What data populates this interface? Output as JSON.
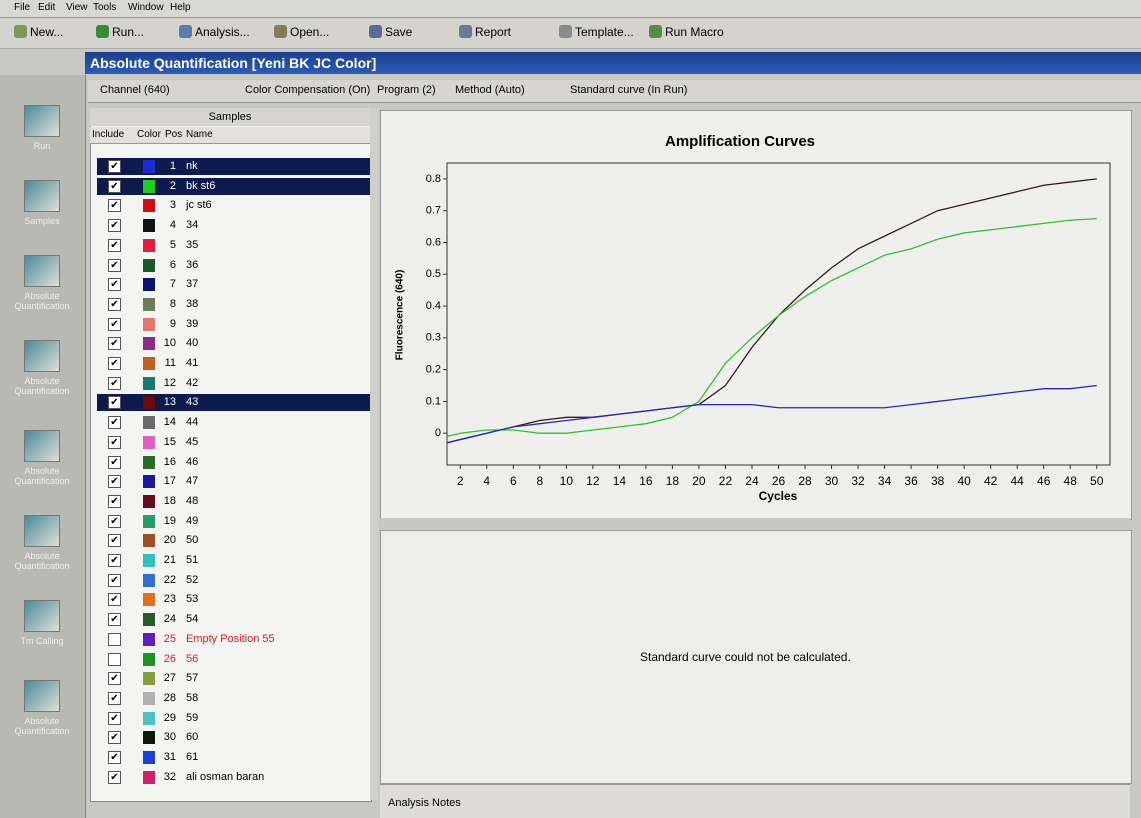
{
  "menu": [
    "File",
    "Edit",
    "View",
    "Tools",
    "Window",
    "Help"
  ],
  "toolbar": [
    "New...",
    "Run...",
    "Analysis...",
    "Open...",
    "Save",
    "Report",
    "Template...",
    "Run Macro"
  ],
  "window_title": "Absolute Quantification [Yeni BK JC Color]",
  "sidebar": [
    "Run",
    "Samples",
    "Absolute Quantification",
    "Absolute Quantification",
    "Absolute Quantification",
    "Absolute Quantification",
    "Tm Calling",
    "Absolute Quantification"
  ],
  "options": [
    "Channel (640)",
    "Color Compensation (On)",
    "Program (2)",
    "Method (Auto)",
    "Standard curve (In Run)"
  ],
  "samples_panel": {
    "title": "Samples",
    "columns": [
      "Include",
      "Color",
      "Pos",
      "Name"
    ],
    "rows": [
      {
        "include": true,
        "color": "#1a2bd0",
        "pos": 1,
        "name": "nk",
        "selected": true,
        "text_color": "#000000"
      },
      {
        "include": true,
        "color": "#22cc22",
        "pos": 2,
        "name": "bk st6",
        "selected": true,
        "text_color": "#000000"
      },
      {
        "include": true,
        "color": "#d01010",
        "pos": 3,
        "name": "jc st6",
        "selected": false,
        "text_color": "#000000"
      },
      {
        "include": true,
        "color": "#111111",
        "pos": 4,
        "name": "34",
        "selected": false,
        "text_color": "#000000"
      },
      {
        "include": true,
        "color": "#e0203a",
        "pos": 5,
        "name": "35",
        "selected": false,
        "text_color": "#000000"
      },
      {
        "include": true,
        "color": "#1a5a2a",
        "pos": 6,
        "name": "36",
        "selected": false,
        "text_color": "#000000"
      },
      {
        "include": true,
        "color": "#0a1070",
        "pos": 7,
        "name": "37",
        "selected": false,
        "text_color": "#000000"
      },
      {
        "include": true,
        "color": "#6a7a5a",
        "pos": 8,
        "name": "38",
        "selected": false,
        "text_color": "#000000"
      },
      {
        "include": true,
        "color": "#e07a6a",
        "pos": 9,
        "name": "39",
        "selected": false,
        "text_color": "#000000"
      },
      {
        "include": true,
        "color": "#8a2a8a",
        "pos": 10,
        "name": "40",
        "selected": false,
        "text_color": "#000000"
      },
      {
        "include": true,
        "color": "#c06020",
        "pos": 11,
        "name": "41",
        "selected": false,
        "text_color": "#000000"
      },
      {
        "include": true,
        "color": "#1a7a6a",
        "pos": 12,
        "name": "42",
        "selected": false,
        "text_color": "#000000"
      },
      {
        "include": true,
        "color": "#6a0a0a",
        "pos": 13,
        "name": "43",
        "selected": true,
        "text_color": "#000000"
      },
      {
        "include": true,
        "color": "#6a6a6a",
        "pos": 14,
        "name": "44",
        "selected": false,
        "text_color": "#000000"
      },
      {
        "include": true,
        "color": "#e060c0",
        "pos": 15,
        "name": "45",
        "selected": false,
        "text_color": "#000000"
      },
      {
        "include": true,
        "color": "#2a6a2a",
        "pos": 16,
        "name": "46",
        "selected": false,
        "text_color": "#000000"
      },
      {
        "include": true,
        "color": "#1a1a9a",
        "pos": 17,
        "name": "47",
        "selected": false,
        "text_color": "#000000"
      },
      {
        "include": true,
        "color": "#6a0a1a",
        "pos": 18,
        "name": "48",
        "selected": false,
        "text_color": "#000000"
      },
      {
        "include": true,
        "color": "#2a9a6a",
        "pos": 19,
        "name": "49",
        "selected": false,
        "text_color": "#000000"
      },
      {
        "include": true,
        "color": "#a05020",
        "pos": 20,
        "name": "50",
        "selected": false,
        "text_color": "#000000"
      },
      {
        "include": true,
        "color": "#30c0c0",
        "pos": 21,
        "name": "51",
        "selected": false,
        "text_color": "#000000"
      },
      {
        "include": true,
        "color": "#3070d0",
        "pos": 22,
        "name": "52",
        "selected": false,
        "text_color": "#000000"
      },
      {
        "include": true,
        "color": "#e07020",
        "pos": 23,
        "name": "53",
        "selected": false,
        "text_color": "#000000"
      },
      {
        "include": true,
        "color": "#2a5a2a",
        "pos": 24,
        "name": "54",
        "selected": false,
        "text_color": "#000000"
      },
      {
        "include": false,
        "color": "#6020c0",
        "pos": 25,
        "name": "Empty Position 55",
        "selected": false,
        "text_color": "#d02020"
      },
      {
        "include": false,
        "color": "#20902a",
        "pos": 26,
        "name": "56",
        "selected": false,
        "text_color": "#d02020"
      },
      {
        "include": true,
        "color": "#80a040",
        "pos": 27,
        "name": "57",
        "selected": false,
        "text_color": "#000000"
      },
      {
        "include": true,
        "color": "#b0b0b0",
        "pos": 28,
        "name": "58",
        "selected": false,
        "text_color": "#000000"
      },
      {
        "include": true,
        "color": "#50c0c0",
        "pos": 29,
        "name": "59",
        "selected": false,
        "text_color": "#000000"
      },
      {
        "include": true,
        "color": "#0a1a0a",
        "pos": 30,
        "name": "60",
        "selected": false,
        "text_color": "#000000"
      },
      {
        "include": true,
        "color": "#1a40d0",
        "pos": 31,
        "name": "61",
        "selected": false,
        "text_color": "#000000"
      },
      {
        "include": true,
        "color": "#d02070",
        "pos": 32,
        "name": "ali osman baran",
        "selected": false,
        "text_color": "#000000"
      }
    ]
  },
  "chart_data": {
    "type": "line",
    "title": "Amplification Curves",
    "xlabel": "Cycles",
    "ylabel": "Fluorescence (640)",
    "x": [
      1,
      2,
      4,
      6,
      8,
      10,
      12,
      14,
      16,
      18,
      20,
      22,
      24,
      26,
      28,
      30,
      32,
      34,
      36,
      38,
      40,
      42,
      44,
      46,
      48,
      50
    ],
    "series": [
      {
        "color": "#3a1a1a",
        "values": [
          -0.03,
          -0.02,
          0.0,
          0.02,
          0.04,
          0.05,
          0.05,
          0.06,
          0.07,
          0.08,
          0.09,
          0.15,
          0.27,
          0.37,
          0.45,
          0.52,
          0.58,
          0.62,
          0.66,
          0.7,
          0.72,
          0.74,
          0.76,
          0.78,
          0.79,
          0.8
        ]
      },
      {
        "color": "#2ec02e",
        "values": [
          -0.01,
          0.0,
          0.01,
          0.01,
          0.0,
          0.0,
          0.01,
          0.02,
          0.03,
          0.05,
          0.1,
          0.22,
          0.3,
          0.37,
          0.43,
          0.48,
          0.52,
          0.56,
          0.58,
          0.61,
          0.63,
          0.64,
          0.65,
          0.66,
          0.67,
          0.675
        ]
      },
      {
        "color": "#2a2ab0",
        "values": [
          -0.03,
          -0.02,
          0.0,
          0.02,
          0.03,
          0.04,
          0.05,
          0.06,
          0.07,
          0.08,
          0.09,
          0.09,
          0.09,
          0.08,
          0.08,
          0.08,
          0.08,
          0.08,
          0.09,
          0.1,
          0.11,
          0.12,
          0.13,
          0.14,
          0.14,
          0.15
        ]
      }
    ],
    "xlim": [
      1,
      51
    ],
    "ylim": [
      -0.1,
      0.85
    ],
    "xticks": [
      2,
      4,
      6,
      8,
      10,
      12,
      14,
      16,
      18,
      20,
      22,
      24,
      26,
      28,
      30,
      32,
      34,
      36,
      38,
      40,
      42,
      44,
      46,
      48,
      50
    ],
    "yticks": [
      0,
      0.1,
      0.2,
      0.3,
      0.4,
      0.5,
      0.6,
      0.7,
      0.8
    ]
  },
  "standard_curve_message": "Standard curve could not be calculated.",
  "notes_tab": "Analysis Notes"
}
